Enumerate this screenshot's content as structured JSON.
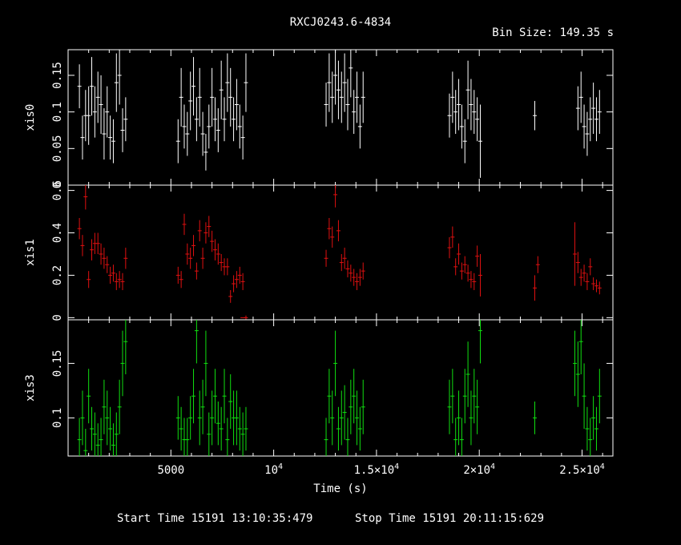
{
  "chart_data": {
    "type": "scatter",
    "title": "RXCJ0243.6-4834",
    "bin_size_label": "Bin Size: 149.35 s",
    "xlabel": "Time (s)",
    "xlim": [
      0,
      26500
    ],
    "x_ticks": [
      {
        "value": 5000,
        "base": "5000",
        "exp": ""
      },
      {
        "value": 10000,
        "base": "10",
        "exp": "4"
      },
      {
        "value": 15000,
        "base": "1.5×10",
        "exp": "4"
      },
      {
        "value": 20000,
        "base": "2×10",
        "exp": "4"
      },
      {
        "value": 25000,
        "base": "2.5×10",
        "exp": "4"
      }
    ],
    "footer": {
      "start": "Start Time 15191 13:10:35:479",
      "stop": "Stop Time 15191 20:11:15:629"
    },
    "panels": [
      {
        "name": "xis0",
        "ylabel": "xis0",
        "color": "#ffffff",
        "ylim": [
          0.0,
          0.185
        ],
        "yticks": [
          0,
          0.05,
          0.1,
          0.15
        ],
        "ytick_labels": [
          "0",
          "0.05",
          "0.1",
          "0.15"
        ],
        "x": [
          550,
          700,
          850,
          1000,
          1150,
          1300,
          1450,
          1600,
          1750,
          1900,
          2050,
          2200,
          2350,
          2500,
          2650,
          2800,
          5350,
          5500,
          5650,
          5800,
          5950,
          6100,
          6250,
          6400,
          6550,
          6700,
          6850,
          7000,
          7150,
          7300,
          7450,
          7600,
          7750,
          7900,
          8050,
          8200,
          8350,
          8500,
          8650,
          12550,
          12700,
          12850,
          13000,
          13150,
          13300,
          13450,
          13600,
          13750,
          13900,
          14050,
          14200,
          14350,
          18550,
          18700,
          18850,
          19000,
          19150,
          19300,
          19450,
          19600,
          19750,
          19900,
          20050,
          22700,
          24800,
          24950,
          25100,
          25250,
          25400,
          25550,
          25700,
          25850
        ],
        "y": [
          0.135,
          0.065,
          0.095,
          0.095,
          0.135,
          0.1,
          0.12,
          0.11,
          0.07,
          0.1,
          0.065,
          0.06,
          0.14,
          0.15,
          0.075,
          0.09,
          0.06,
          0.12,
          0.08,
          0.07,
          0.115,
          0.135,
          0.09,
          0.12,
          0.07,
          0.045,
          0.08,
          0.12,
          0.09,
          0.075,
          0.13,
          0.09,
          0.14,
          0.12,
          0.09,
          0.11,
          0.08,
          0.065,
          0.14,
          0.11,
          0.14,
          0.12,
          0.15,
          0.13,
          0.12,
          0.14,
          0.11,
          0.16,
          0.1,
          0.12,
          0.08,
          0.12,
          0.095,
          0.12,
          0.1,
          0.11,
          0.08,
          0.06,
          0.13,
          0.11,
          0.1,
          0.09,
          0.06,
          0.095,
          0.105,
          0.12,
          0.08,
          0.07,
          0.09,
          0.105,
          0.09,
          0.1
        ],
        "err": [
          0.03,
          0.03,
          0.035,
          0.04,
          0.04,
          0.035,
          0.035,
          0.04,
          0.035,
          0.035,
          0.03,
          0.03,
          0.04,
          0.04,
          0.03,
          0.03,
          0.03,
          0.04,
          0.03,
          0.03,
          0.04,
          0.04,
          0.03,
          0.04,
          0.03,
          0.025,
          0.03,
          0.04,
          0.03,
          0.03,
          0.04,
          0.03,
          0.04,
          0.04,
          0.03,
          0.035,
          0.03,
          0.03,
          0.04,
          0.03,
          0.04,
          0.035,
          0.04,
          0.04,
          0.035,
          0.04,
          0.035,
          0.04,
          0.03,
          0.035,
          0.03,
          0.035,
          0.03,
          0.035,
          0.03,
          0.035,
          0.03,
          0.03,
          0.04,
          0.035,
          0.03,
          0.03,
          0.05,
          0.02,
          0.03,
          0.035,
          0.03,
          0.03,
          0.03,
          0.035,
          0.03,
          0.03
        ]
      },
      {
        "name": "xis1",
        "ylabel": "xis1",
        "color": "#e01010",
        "ylim": [
          -0.01,
          0.625
        ],
        "yticks": [
          0,
          0.2,
          0.4,
          0.6
        ],
        "ytick_labels": [
          "0",
          "0.2",
          "0.4",
          "0.6"
        ],
        "x": [
          550,
          700,
          850,
          1000,
          1150,
          1300,
          1450,
          1600,
          1750,
          1900,
          2050,
          2200,
          2350,
          2500,
          2650,
          2800,
          5350,
          5500,
          5650,
          5800,
          5950,
          6100,
          6250,
          6400,
          6550,
          6700,
          6850,
          7000,
          7150,
          7300,
          7450,
          7600,
          7750,
          7900,
          8050,
          8200,
          8350,
          8500,
          8650,
          12550,
          12700,
          12850,
          13000,
          13150,
          13300,
          13450,
          13600,
          13750,
          13900,
          14050,
          14200,
          14350,
          18550,
          18700,
          18850,
          19000,
          19150,
          19300,
          19450,
          19600,
          19750,
          19900,
          20050,
          22700,
          22850,
          24650,
          24800,
          24950,
          25100,
          25250,
          25400,
          25550,
          25700,
          25850
        ],
        "y": [
          0.42,
          0.34,
          0.57,
          0.18,
          0.32,
          0.35,
          0.35,
          0.3,
          0.28,
          0.25,
          0.2,
          0.21,
          0.17,
          0.18,
          0.17,
          0.28,
          0.2,
          0.18,
          0.44,
          0.3,
          0.28,
          0.34,
          0.22,
          0.41,
          0.28,
          0.4,
          0.43,
          0.36,
          0.32,
          0.3,
          0.26,
          0.24,
          0.24,
          0.1,
          0.16,
          0.18,
          0.2,
          0.17,
          0.0,
          0.28,
          0.42,
          0.38,
          0.58,
          0.41,
          0.26,
          0.28,
          0.23,
          0.21,
          0.19,
          0.17,
          0.19,
          0.22,
          0.33,
          0.38,
          0.24,
          0.3,
          0.22,
          0.25,
          0.21,
          0.18,
          0.17,
          0.29,
          0.2,
          0.14,
          0.25,
          0.3,
          0.26,
          0.19,
          0.21,
          0.17,
          0.24,
          0.16,
          0.15,
          0.14
        ],
        "err": [
          0.05,
          0.05,
          0.06,
          0.04,
          0.05,
          0.05,
          0.05,
          0.05,
          0.05,
          0.04,
          0.04,
          0.04,
          0.04,
          0.04,
          0.04,
          0.05,
          0.04,
          0.04,
          0.05,
          0.05,
          0.05,
          0.05,
          0.04,
          0.05,
          0.05,
          0.05,
          0.05,
          0.05,
          0.05,
          0.05,
          0.04,
          0.04,
          0.04,
          0.03,
          0.04,
          0.04,
          0.04,
          0.04,
          0.01,
          0.04,
          0.05,
          0.05,
          0.06,
          0.05,
          0.04,
          0.05,
          0.04,
          0.04,
          0.04,
          0.04,
          0.04,
          0.04,
          0.05,
          0.05,
          0.04,
          0.05,
          0.04,
          0.04,
          0.04,
          0.04,
          0.04,
          0.05,
          0.1,
          0.06,
          0.04,
          0.15,
          0.05,
          0.04,
          0.04,
          0.04,
          0.04,
          0.03,
          0.03,
          0.03
        ],
        "open_markers": [
          {
            "x": 8500,
            "y": 0.0
          }
        ]
      },
      {
        "name": "xis3",
        "ylabel": "xis3",
        "color": "#10e010",
        "ylim": [
          0.065,
          0.19
        ],
        "yticks": [
          0.1,
          0.15
        ],
        "ytick_labels": [
          "0.1",
          "0.15"
        ],
        "x": [
          550,
          700,
          850,
          1000,
          1150,
          1300,
          1450,
          1600,
          1750,
          1900,
          2050,
          2200,
          2350,
          2500,
          2650,
          2800,
          5350,
          5500,
          5650,
          5800,
          5950,
          6100,
          6250,
          6400,
          6550,
          6700,
          6850,
          7000,
          7150,
          7300,
          7450,
          7600,
          7750,
          7900,
          8050,
          8200,
          8350,
          8500,
          8650,
          12550,
          12700,
          12850,
          13000,
          13150,
          13300,
          13450,
          13600,
          13750,
          13900,
          14050,
          14200,
          14350,
          18550,
          18700,
          18850,
          19000,
          19150,
          19300,
          19450,
          19600,
          19750,
          19900,
          20050,
          22700,
          24650,
          24800,
          24950,
          25100,
          25250,
          25400,
          25550,
          25700,
          25850
        ],
        "y": [
          0.08,
          0.1,
          0.07,
          0.12,
          0.09,
          0.085,
          0.075,
          0.08,
          0.11,
          0.1,
          0.09,
          0.075,
          0.085,
          0.11,
          0.15,
          0.17,
          0.1,
          0.09,
          0.08,
          0.08,
          0.1,
          0.12,
          0.18,
          0.1,
          0.11,
          0.15,
          0.085,
          0.1,
          0.12,
          0.095,
          0.09,
          0.12,
          0.08,
          0.115,
          0.1,
          0.1,
          0.09,
          0.085,
          0.09,
          0.08,
          0.12,
          0.1,
          0.15,
          0.09,
          0.1,
          0.105,
          0.08,
          0.11,
          0.12,
          0.1,
          0.09,
          0.11,
          0.11,
          0.12,
          0.08,
          0.1,
          0.08,
          0.12,
          0.14,
          0.1,
          0.12,
          0.11,
          0.18,
          0.1,
          0.15,
          0.14,
          0.17,
          0.12,
          0.09,
          0.08,
          0.1,
          0.09,
          0.12
        ],
        "err": [
          0.02,
          0.025,
          0.02,
          0.025,
          0.02,
          0.02,
          0.02,
          0.02,
          0.025,
          0.025,
          0.02,
          0.02,
          0.02,
          0.025,
          0.03,
          0.03,
          0.02,
          0.02,
          0.02,
          0.02,
          0.02,
          0.025,
          0.03,
          0.025,
          0.025,
          0.03,
          0.02,
          0.025,
          0.025,
          0.02,
          0.02,
          0.025,
          0.02,
          0.025,
          0.025,
          0.025,
          0.02,
          0.02,
          0.02,
          0.02,
          0.025,
          0.025,
          0.03,
          0.02,
          0.025,
          0.025,
          0.02,
          0.025,
          0.025,
          0.025,
          0.02,
          0.025,
          0.025,
          0.025,
          0.02,
          0.025,
          0.02,
          0.025,
          0.03,
          0.025,
          0.025,
          0.025,
          0.03,
          0.015,
          0.03,
          0.03,
          0.03,
          0.03,
          0.02,
          0.02,
          0.02,
          0.02,
          0.025
        ]
      }
    ]
  }
}
